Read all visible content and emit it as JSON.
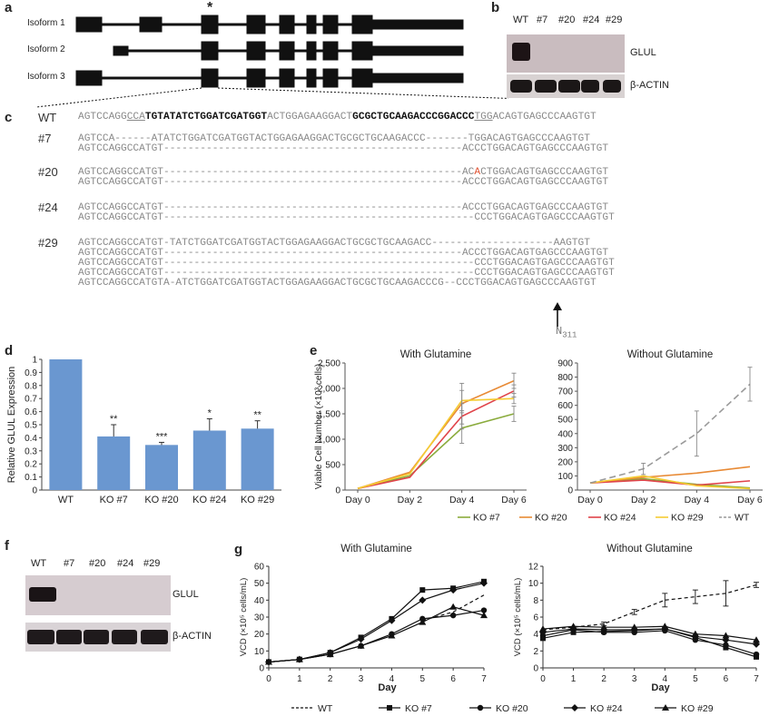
{
  "panel_a": {
    "label": "a",
    "star": "*",
    "isoforms": [
      "Isoform 1",
      "Isoform 2",
      "Isoform 3"
    ]
  },
  "panel_b": {
    "label": "b",
    "lanes": [
      "WT",
      "#7",
      "#20",
      "#24",
      "#29"
    ],
    "rows": [
      "GLUL",
      "β-ACTIN"
    ]
  },
  "panel_c": {
    "label": "c",
    "wt_label": "WT",
    "wt_parts": [
      {
        "t": "AGTCCAGG",
        "s": "grey"
      },
      {
        "t": "CCA",
        "s": "under"
      },
      {
        "t": "TGTATATCTGGATCGATGGT",
        "s": "bold"
      },
      {
        "t": "ACTGGAGAAGGACT",
        "s": "grey"
      },
      {
        "t": "GCGCTGCAAGACCCGGACCC",
        "s": "bold"
      },
      {
        "t": "TGG",
        "s": "under"
      },
      {
        "t": "ACAGTGAGCCCAAGTGT",
        "s": "grey"
      }
    ],
    "clones": [
      {
        "name": "#7",
        "seqs": [
          "AGTCCA------ATATCTGGATCGATGGTACTGGAGAAGGACTGCGCTGCAAGACCC-------TGGACAGTGAGCCCAAGTGT",
          "AGTCCAGGCCATGT-------------------------------------------------ACCCTGGACAGTGAGCCCAAGTGT"
        ]
      },
      {
        "name": "#20",
        "seqs": [
          "AGTCCAGGCCATGT-------------------------------------------------ACACTGGACAGTGAGCCCAAGTGT",
          "AGTCCAGGCCATGT-------------------------------------------------ACCCTGGACAGTGAGCCCAAGTGT"
        ]
      },
      {
        "name": "#24",
        "seqs": [
          "AGTCCAGGCCATGT-------------------------------------------------ACCCTGGACAGTGAGCCCAAGTGT",
          "AGTCCAGGCCATGT---------------------------------------------------CCCTGGACAGTGAGCCCAAGTGT"
        ]
      },
      {
        "name": "#29",
        "seqs": [
          "AGTCCAGGCCATGT-TATCTGGATCGATGGTACTGGAGAAGGACTGCGCTGCAAGACC--------------------AAGTGT",
          "AGTCCAGGCCATGT-------------------------------------------------ACCCTGGACAGTGAGCCCAAGTGT",
          "AGTCCAGGCCATGT---------------------------------------------------CCCTGGACAGTGAGCCCAAGTGT",
          "AGTCCAGGCCATGT---------------------------------------------------CCCTGGACAGTGAGCCCAAGTGT",
          "AGTCCAGGCCATGTA-ATCTGGATCGATGGTACTGGAGAAGGACTGCGCTGCAAGACCCG--CCCTGGACAGTGAGCCCAAGTGT"
        ]
      }
    ],
    "n_label": "N",
    "n_sub": "311"
  },
  "panel_d": {
    "label": "d",
    "chart_data": {
      "type": "bar",
      "categories": [
        "WT",
        "KO #7",
        "KO #20",
        "KO #24",
        "KO #29"
      ],
      "values": [
        1.0,
        0.41,
        0.345,
        0.455,
        0.47
      ],
      "errors": [
        0,
        0.09,
        0.02,
        0.09,
        0.06
      ],
      "significance": [
        "",
        "**",
        "***",
        "*",
        "**"
      ],
      "ylabel": "Relative GLUL Expression",
      "ylim": [
        0,
        1
      ],
      "yticks": [
        "0",
        "0.1",
        "0.2",
        "0.3",
        "0.4",
        "0.5",
        "0.6",
        "0.7",
        "0.8",
        "0.9",
        "1"
      ],
      "color": "#6a97d0"
    }
  },
  "panel_e": {
    "label": "e",
    "ylabel": "Viable Cell Number (×10³ cells)",
    "legend": [
      {
        "name": "KO #7",
        "color": "#8aab3c",
        "dash": false
      },
      {
        "name": "KO #20",
        "color": "#e88a35",
        "dash": false
      },
      {
        "name": "KO #24",
        "color": "#e0444a",
        "dash": false
      },
      {
        "name": "KO #29",
        "color": "#f5cc33",
        "dash": false
      },
      {
        "name": "WT",
        "color": "#9a9a9a",
        "dash": true
      }
    ],
    "chart_data": [
      {
        "type": "line",
        "title": "With Glutamine",
        "x": [
          "Day 0",
          "Day 2",
          "Day 4",
          "Day 6"
        ],
        "ylim": [
          0,
          2500
        ],
        "yticks": [
          "0",
          "500",
          "1,000",
          "1,500",
          "2,000",
          "2,500"
        ],
        "series": [
          {
            "name": "KO #7",
            "values": [
              30,
              280,
              1220,
              1500
            ],
            "errors": [
              0,
              0,
              300,
              150
            ],
            "color": "#8aab3c"
          },
          {
            "name": "KO #20",
            "values": [
              30,
              350,
              1700,
              2150
            ],
            "errors": [
              0,
              0,
              400,
              150
            ],
            "color": "#e88a35"
          },
          {
            "name": "KO #24",
            "values": [
              30,
              250,
              1450,
              1950
            ],
            "errors": [
              0,
              0,
              250,
              120
            ],
            "color": "#e0444a"
          },
          {
            "name": "KO #29",
            "values": [
              30,
              320,
              1760,
              1800
            ],
            "errors": [
              0,
              0,
              200,
              100
            ],
            "color": "#f5cc33"
          }
        ]
      },
      {
        "type": "line",
        "title": "Without Glutamine",
        "x": [
          "Day 0",
          "Day 2",
          "Day 4",
          "Day 6"
        ],
        "ylim": [
          0,
          900
        ],
        "yticks": [
          "0",
          "100",
          "200",
          "300",
          "400",
          "500",
          "600",
          "700",
          "800",
          "900"
        ],
        "series": [
          {
            "name": "KO #7",
            "values": [
              50,
              80,
              40,
              15
            ],
            "errors": [
              0,
              0,
              0,
              0
            ],
            "color": "#8aab3c"
          },
          {
            "name": "KO #20",
            "values": [
              50,
              90,
              120,
              165
            ],
            "errors": [
              0,
              0,
              0,
              0
            ],
            "color": "#e88a35"
          },
          {
            "name": "KO #24",
            "values": [
              50,
              70,
              35,
              65
            ],
            "errors": [
              0,
              0,
              0,
              0
            ],
            "color": "#e0444a"
          },
          {
            "name": "KO #29",
            "values": [
              50,
              100,
              30,
              10
            ],
            "errors": [
              0,
              0,
              0,
              0
            ],
            "color": "#f5cc33"
          },
          {
            "name": "WT",
            "values": [
              50,
              150,
              400,
              750
            ],
            "errors": [
              0,
              40,
              160,
              120
            ],
            "color": "#9a9a9a",
            "dash": true
          }
        ]
      }
    ]
  },
  "panel_f": {
    "label": "f",
    "lanes": [
      "WT",
      "#7",
      "#20",
      "#24",
      "#29"
    ],
    "rows": [
      "GLUL",
      "β-ACTIN"
    ]
  },
  "panel_g": {
    "label": "g",
    "ylabel": "VCD (×10⁵ cells/mL)",
    "xlabel": "Day",
    "legend": [
      {
        "name": "WT",
        "marker": "none",
        "dash": true
      },
      {
        "name": "KO #7",
        "marker": "square",
        "dash": false
      },
      {
        "name": "KO #20",
        "marker": "circle",
        "dash": false
      },
      {
        "name": "KO #24",
        "marker": "diamond",
        "dash": false
      },
      {
        "name": "KO #29",
        "marker": "triangle",
        "dash": false
      }
    ],
    "chart_data": [
      {
        "type": "line",
        "title": "With Glutamine",
        "x": [
          0,
          1,
          2,
          3,
          4,
          5,
          6,
          7
        ],
        "ylim": [
          0,
          60
        ],
        "yticks": [
          "0",
          "10",
          "20",
          "30",
          "40",
          "50",
          "60"
        ],
        "series": [
          {
            "name": "WT",
            "values": [
              null,
              null,
              null,
              null,
              null,
              28,
              33,
              43
            ],
            "dash": true,
            "marker": "none"
          },
          {
            "name": "KO #7",
            "values": [
              3.5,
              5,
              9,
              18,
              29,
              46,
              47,
              51
            ],
            "marker": "square"
          },
          {
            "name": "KO #20",
            "values": [
              3.5,
              5,
              8,
              13,
              20,
              29,
              31,
              34
            ],
            "marker": "circle"
          },
          {
            "name": "KO #24",
            "values": [
              3.5,
              5,
              9,
              17,
              28,
              40,
              46,
              50
            ],
            "marker": "diamond"
          },
          {
            "name": "KO #29",
            "values": [
              3.5,
              5,
              8,
              13,
              19,
              27,
              36,
              31
            ],
            "marker": "triangle"
          }
        ]
      },
      {
        "type": "line",
        "title": "Without Glutamine",
        "x": [
          0,
          1,
          2,
          3,
          4,
          5,
          6,
          7
        ],
        "ylim": [
          0,
          12
        ],
        "yticks": [
          "0",
          "2",
          "4",
          "6",
          "8",
          "10",
          "12"
        ],
        "series": [
          {
            "name": "WT",
            "values": [
              4.5,
              4.8,
              5.2,
              6.6,
              8,
              8.4,
              8.8,
              9.8
            ],
            "dash": true,
            "marker": "none",
            "errors": [
              0,
              0,
              0.2,
              0.3,
              0.8,
              0.8,
              1.5,
              0.3
            ]
          },
          {
            "name": "KO #7",
            "values": [
              3.5,
              4.2,
              4.3,
              4.4,
              4.6,
              3.6,
              2.4,
              1.3
            ],
            "marker": "square"
          },
          {
            "name": "KO #20",
            "values": [
              3.8,
              4.5,
              4.2,
              4.2,
              4.4,
              3.3,
              2.7,
              1.6
            ],
            "marker": "circle"
          },
          {
            "name": "KO #24",
            "values": [
              4.2,
              4.6,
              4.5,
              4.5,
              4.6,
              3.7,
              3.3,
              2.8
            ],
            "marker": "diamond"
          },
          {
            "name": "KO #29",
            "values": [
              4.6,
              4.9,
              4.8,
              4.8,
              4.9,
              4.0,
              3.8,
              3.3
            ],
            "marker": "triangle"
          }
        ]
      }
    ]
  }
}
